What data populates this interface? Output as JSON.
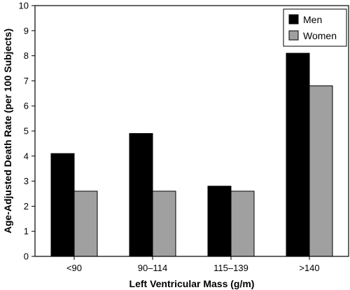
{
  "chart_data": {
    "type": "bar",
    "categories": [
      "<90",
      "90–114",
      "115–139",
      ">140"
    ],
    "series": [
      {
        "name": "Men",
        "values": [
          4.1,
          4.9,
          2.8,
          8.1
        ],
        "color": "#000000"
      },
      {
        "name": "Women",
        "values": [
          2.6,
          2.6,
          2.6,
          6.8
        ],
        "color": "#a0a0a0"
      }
    ],
    "xlabel": "Left Ventricular Mass (g/m)",
    "ylabel": "Age-Adjusted Death Rate (per 100 Subjects)",
    "ylim": [
      0,
      10
    ],
    "yticks": [
      "0",
      "1",
      "2",
      "3",
      "4",
      "5",
      "6",
      "7",
      "8",
      "9",
      "10"
    ],
    "grid": false,
    "legend_position": "top-right"
  }
}
